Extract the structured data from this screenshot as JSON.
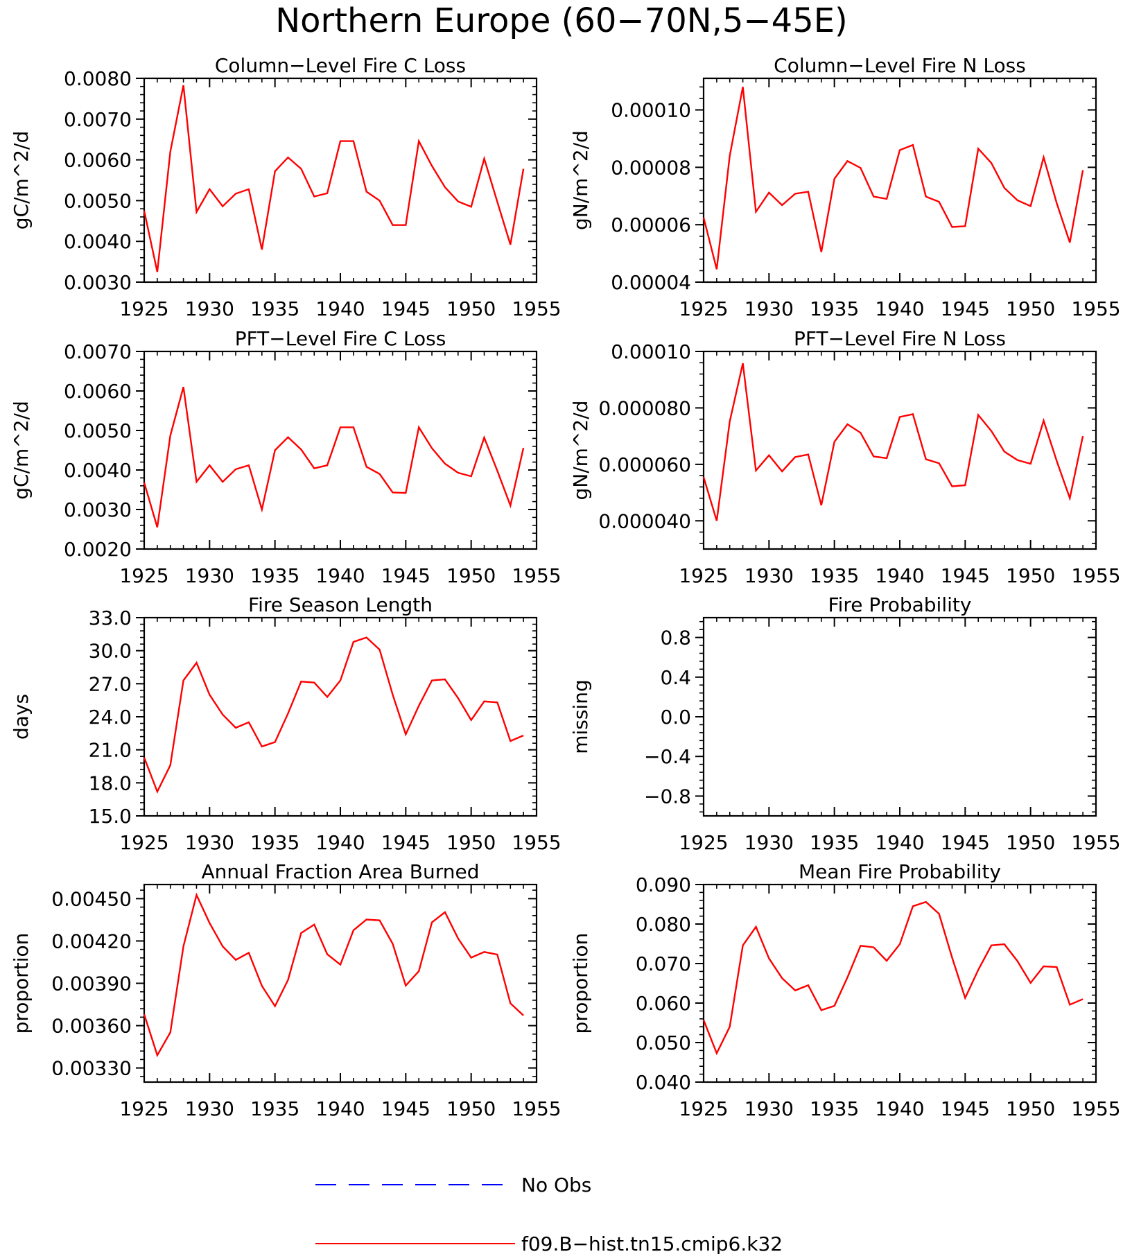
{
  "figure": {
    "title": "Northern Europe (60−70N,5−45E)"
  },
  "colors": {
    "model_line": "#ff0000",
    "obs_line": "#0000ff",
    "axes": "#000000"
  },
  "legend": {
    "entries": [
      {
        "label": "No Obs",
        "color": "#0000ff",
        "style": "dashed"
      },
      {
        "label": "f09.B−hist.tn15.cmip6.k32",
        "color": "#ff0000",
        "style": "solid"
      }
    ]
  },
  "chart_data": [
    {
      "type": "line",
      "title": "Column−Level Fire C Loss",
      "ylabel": "gC/m^2/d",
      "xlim": [
        1925,
        1955
      ],
      "ylim": [
        0.003,
        0.008
      ],
      "xticks": [
        1925,
        1930,
        1935,
        1940,
        1945,
        1950,
        1955
      ],
      "xtick_labels": [
        "1925",
        "1930",
        "1935",
        "1940",
        "1945",
        "1950",
        "1955"
      ],
      "yticks": [
        0.003,
        0.004,
        0.005,
        0.006,
        0.007,
        0.008
      ],
      "ytick_labels": [
        "0.0030",
        "0.0040",
        "0.0050",
        "0.0060",
        "0.0070",
        "0.0080"
      ],
      "series": [
        {
          "name": "f09.B−hist.tn15.cmip6.k32",
          "x": [
            1925,
            1926,
            1927,
            1928,
            1929,
            1930,
            1931,
            1932,
            1933,
            1934,
            1935,
            1936,
            1937,
            1938,
            1939,
            1940,
            1941,
            1942,
            1943,
            1944,
            1945,
            1946,
            1947,
            1948,
            1949,
            1950,
            1951,
            1952,
            1953,
            1954
          ],
          "y": [
            0.00475,
            0.00325,
            0.0062,
            0.00783,
            0.00472,
            0.00528,
            0.00486,
            0.00517,
            0.00528,
            0.0038,
            0.00572,
            0.00606,
            0.00578,
            0.0051,
            0.00518,
            0.00646,
            0.00646,
            0.00522,
            0.005,
            0.0044,
            0.0044,
            0.00646,
            0.00585,
            0.00533,
            0.00498,
            0.00485,
            0.00603,
            0.00497,
            0.00392,
            0.00578
          ]
        }
      ]
    },
    {
      "type": "line",
      "title": "Column−Level Fire N Loss",
      "ylabel": "gN/m^2/d",
      "xlim": [
        1925,
        1955
      ],
      "ylim": [
        4e-05,
        0.000111
      ],
      "xticks": [
        1925,
        1930,
        1935,
        1940,
        1945,
        1950,
        1955
      ],
      "xtick_labels": [
        "1925",
        "1930",
        "1935",
        "1940",
        "1945",
        "1950",
        "1955"
      ],
      "yticks": [
        4e-05,
        6e-05,
        8e-05,
        0.0001
      ],
      "ytick_labels": [
        "0.00004",
        "0.00006",
        "0.00008",
        "0.00010"
      ],
      "series": [
        {
          "name": "f09.B−hist.tn15.cmip6.k32",
          "x": [
            1925,
            1926,
            1927,
            1928,
            1929,
            1930,
            1931,
            1932,
            1933,
            1934,
            1935,
            1936,
            1937,
            1938,
            1939,
            1940,
            1941,
            1942,
            1943,
            1944,
            1945,
            1946,
            1947,
            1948,
            1949,
            1950,
            1951,
            1952,
            1953,
            1954
          ],
          "y": [
            6.25e-05,
            4.45e-05,
            8.4e-05,
            0.000108,
            6.45e-05,
            7.12e-05,
            6.68e-05,
            7.08e-05,
            7.15e-05,
            5.05e-05,
            7.6e-05,
            8.22e-05,
            7.98e-05,
            6.98e-05,
            6.9e-05,
            8.6e-05,
            8.78e-05,
            6.98e-05,
            6.8e-05,
            5.92e-05,
            5.95e-05,
            8.65e-05,
            8.15e-05,
            7.28e-05,
            6.85e-05,
            6.65e-05,
            8.35e-05,
            6.75e-05,
            5.38e-05,
            7.9e-05
          ]
        }
      ]
    },
    {
      "type": "line",
      "title": "PFT−Level Fire C Loss",
      "ylabel": "gC/m^2/d",
      "xlim": [
        1925,
        1955
      ],
      "ylim": [
        0.002,
        0.007
      ],
      "xticks": [
        1925,
        1930,
        1935,
        1940,
        1945,
        1950,
        1955
      ],
      "xtick_labels": [
        "1925",
        "1930",
        "1935",
        "1940",
        "1945",
        "1950",
        "1955"
      ],
      "yticks": [
        0.002,
        0.003,
        0.004,
        0.005,
        0.006,
        0.007
      ],
      "ytick_labels": [
        "0.0020",
        "0.0030",
        "0.0040",
        "0.0050",
        "0.0060",
        "0.0070"
      ],
      "series": [
        {
          "name": "f09.B−hist.tn15.cmip6.k32",
          "x": [
            1925,
            1926,
            1927,
            1928,
            1929,
            1930,
            1931,
            1932,
            1933,
            1934,
            1935,
            1936,
            1937,
            1938,
            1939,
            1940,
            1941,
            1942,
            1943,
            1944,
            1945,
            1946,
            1947,
            1948,
            1949,
            1950,
            1951,
            1952,
            1953,
            1954
          ],
          "y": [
            0.00368,
            0.00255,
            0.00487,
            0.0061,
            0.0037,
            0.00412,
            0.0037,
            0.00402,
            0.00412,
            0.003,
            0.0045,
            0.00483,
            0.00452,
            0.00404,
            0.00412,
            0.00508,
            0.00508,
            0.00408,
            0.0039,
            0.00343,
            0.00342,
            0.00508,
            0.00455,
            0.00416,
            0.00393,
            0.00384,
            0.00482,
            0.00398,
            0.0031,
            0.00456
          ]
        }
      ]
    },
    {
      "type": "line",
      "title": "PFT−Level Fire N Loss",
      "ylabel": "gN/m^2/d",
      "xlim": [
        1925,
        1955
      ],
      "ylim": [
        3e-05,
        0.0001
      ],
      "xticks": [
        1925,
        1930,
        1935,
        1940,
        1945,
        1950,
        1955
      ],
      "xtick_labels": [
        "1925",
        "1930",
        "1935",
        "1940",
        "1945",
        "1950",
        "1955"
      ],
      "yticks": [
        4e-05,
        6e-05,
        8e-05,
        0.0001
      ],
      "ytick_labels": [
        "0.000040",
        "0.000060",
        "0.000080",
        "0.00010"
      ],
      "series": [
        {
          "name": "f09.B−hist.tn15.cmip6.k32",
          "x": [
            1925,
            1926,
            1927,
            1928,
            1929,
            1930,
            1931,
            1932,
            1933,
            1934,
            1935,
            1936,
            1937,
            1938,
            1939,
            1940,
            1941,
            1942,
            1943,
            1944,
            1945,
            1946,
            1947,
            1948,
            1949,
            1950,
            1951,
            1952,
            1953,
            1954
          ],
          "y": [
            5.55e-05,
            4e-05,
            7.52e-05,
            9.58e-05,
            5.78e-05,
            6.32e-05,
            5.75e-05,
            6.26e-05,
            6.35e-05,
            4.55e-05,
            6.8e-05,
            7.42e-05,
            7.12e-05,
            6.28e-05,
            6.22e-05,
            7.68e-05,
            7.78e-05,
            6.18e-05,
            6.04e-05,
            5.22e-05,
            5.26e-05,
            7.75e-05,
            7.18e-05,
            6.45e-05,
            6.15e-05,
            6.02e-05,
            7.55e-05,
            6.12e-05,
            4.8e-05,
            7e-05
          ]
        }
      ]
    },
    {
      "type": "line",
      "title": "Fire Season Length",
      "ylabel": "days",
      "xlim": [
        1925,
        1955
      ],
      "ylim": [
        15.0,
        33.0
      ],
      "xticks": [
        1925,
        1930,
        1935,
        1940,
        1945,
        1950,
        1955
      ],
      "xtick_labels": [
        "1925",
        "1930",
        "1935",
        "1940",
        "1945",
        "1950",
        "1955"
      ],
      "yticks": [
        15,
        18,
        21,
        24,
        27,
        30,
        33
      ],
      "ytick_labels": [
        "15.0",
        "18.0",
        "21.0",
        "24.0",
        "27.0",
        "30.0",
        "33.0"
      ],
      "series": [
        {
          "name": "f09.B−hist.tn15.cmip6.k32",
          "x": [
            1925,
            1926,
            1927,
            1928,
            1929,
            1930,
            1931,
            1932,
            1933,
            1934,
            1935,
            1936,
            1937,
            1938,
            1939,
            1940,
            1941,
            1942,
            1943,
            1944,
            1945,
            1946,
            1947,
            1948,
            1949,
            1950,
            1951,
            1952,
            1953,
            1954
          ],
          "y": [
            20.3,
            17.2,
            19.6,
            27.3,
            28.9,
            26.0,
            24.2,
            23.0,
            23.5,
            21.3,
            21.7,
            24.3,
            27.2,
            27.1,
            25.8,
            27.3,
            30.8,
            31.2,
            30.1,
            26.0,
            22.4,
            25.0,
            27.3,
            27.4,
            25.7,
            23.7,
            25.4,
            25.3,
            21.8,
            22.3
          ]
        }
      ]
    },
    {
      "type": "line",
      "title": "Fire Probability",
      "ylabel": "missing",
      "xlim": [
        1925,
        1955
      ],
      "ylim": [
        -1.0,
        1.0
      ],
      "xticks": [
        1925,
        1930,
        1935,
        1940,
        1945,
        1950,
        1955
      ],
      "xtick_labels": [
        "1925",
        "1930",
        "1935",
        "1940",
        "1945",
        "1950",
        "1955"
      ],
      "yticks": [
        -0.8,
        -0.4,
        0.0,
        0.4,
        0.8
      ],
      "ytick_labels": [
        "−0.8",
        "−0.4",
        "0.0",
        "0.4",
        "0.8"
      ],
      "series": []
    },
    {
      "type": "line",
      "title": "Annual Fraction Area Burned",
      "ylabel": "proportion",
      "xlim": [
        1925,
        1955
      ],
      "ylim": [
        0.0032,
        0.0046
      ],
      "xticks": [
        1925,
        1930,
        1935,
        1940,
        1945,
        1950,
        1955
      ],
      "xtick_labels": [
        "1925",
        "1930",
        "1935",
        "1940",
        "1945",
        "1950",
        "1955"
      ],
      "yticks": [
        0.0033,
        0.0036,
        0.0039,
        0.0042,
        0.0045
      ],
      "ytick_labels": [
        "0.00330",
        "0.00360",
        "0.00390",
        "0.00420",
        "0.00450"
      ],
      "series": [
        {
          "name": "f09.B−hist.tn15.cmip6.k32",
          "x": [
            1925,
            1926,
            1927,
            1928,
            1929,
            1930,
            1931,
            1932,
            1933,
            1934,
            1935,
            1936,
            1937,
            1938,
            1939,
            1940,
            1941,
            1942,
            1943,
            1944,
            1945,
            1946,
            1947,
            1948,
            1949,
            1950,
            1951,
            1952,
            1953,
            1954
          ],
          "y": [
            0.00368,
            0.00339,
            0.003552,
            0.004162,
            0.004526,
            0.004328,
            0.004162,
            0.004066,
            0.004116,
            0.003882,
            0.003738,
            0.003924,
            0.004256,
            0.004316,
            0.004106,
            0.004032,
            0.004276,
            0.004352,
            0.004346,
            0.00418,
            0.003884,
            0.003986,
            0.004332,
            0.004404,
            0.004218,
            0.004082,
            0.004122,
            0.004104,
            0.003758,
            0.003672
          ]
        }
      ]
    },
    {
      "type": "line",
      "title": "Mean Fire Probability",
      "ylabel": "proportion",
      "xlim": [
        1925,
        1955
      ],
      "ylim": [
        0.04,
        0.09
      ],
      "xticks": [
        1925,
        1930,
        1935,
        1940,
        1945,
        1950,
        1955
      ],
      "xtick_labels": [
        "1925",
        "1930",
        "1935",
        "1940",
        "1945",
        "1950",
        "1955"
      ],
      "yticks": [
        0.04,
        0.05,
        0.06,
        0.07,
        0.08,
        0.09
      ],
      "ytick_labels": [
        "0.040",
        "0.050",
        "0.060",
        "0.070",
        "0.080",
        "0.090"
      ],
      "series": [
        {
          "name": "f09.B−hist.tn15.cmip6.k32",
          "x": [
            1925,
            1926,
            1927,
            1928,
            1929,
            1930,
            1931,
            1932,
            1933,
            1934,
            1935,
            1936,
            1937,
            1938,
            1939,
            1940,
            1941,
            1942,
            1943,
            1944,
            1945,
            1946,
            1947,
            1948,
            1949,
            1950,
            1951,
            1952,
            1953,
            1954
          ],
          "y": [
            0.0557,
            0.0473,
            0.054,
            0.0746,
            0.0793,
            0.0713,
            0.0663,
            0.0632,
            0.0645,
            0.0582,
            0.0593,
            0.0665,
            0.0745,
            0.0741,
            0.0707,
            0.0749,
            0.0845,
            0.0856,
            0.0826,
            0.0715,
            0.0613,
            0.0684,
            0.0746,
            0.0749,
            0.0706,
            0.0651,
            0.0693,
            0.0691,
            0.0596,
            0.061
          ]
        }
      ]
    }
  ]
}
